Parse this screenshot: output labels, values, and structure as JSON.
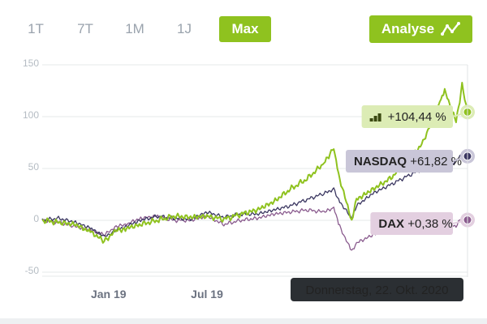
{
  "range_tabs": [
    {
      "label": "1T",
      "active": false
    },
    {
      "label": "7T",
      "active": false
    },
    {
      "label": "1M",
      "active": false
    },
    {
      "label": "1J",
      "active": false
    },
    {
      "label": "Max",
      "active": true
    }
  ],
  "analyse_button": {
    "label": "Analyse",
    "icon": "trend-line-icon"
  },
  "colors": {
    "accent": "#8fc21f",
    "nasdaq": "#3a3660",
    "dax": "#8a5b8e",
    "nasdaq_pill": "#c9c6d8",
    "dax_pill": "#e3cfe0",
    "main_pill": "#dcecb5"
  },
  "chart_data": {
    "type": "line",
    "ylim": [
      -50,
      150
    ],
    "y_ticks": [
      {
        "label": "150",
        "value": 150
      },
      {
        "label": "100",
        "value": 100
      },
      {
        "label": "50",
        "value": 50
      },
      {
        "label": "0",
        "value": 0
      },
      {
        "label": "-50",
        "value": -50
      }
    ],
    "x_ticks": [
      {
        "label": "Jan 19",
        "x": "2019-01-01"
      },
      {
        "label": "Jul 19",
        "x": "2019-07-01"
      }
    ],
    "grid": true,
    "tooltip": "Donnerstag, 22. Okt. 2020",
    "x": [
      "2018-09-01",
      "2018-10-01",
      "2018-11-01",
      "2018-12-01",
      "2018-12-24",
      "2019-01-15",
      "2019-02-01",
      "2019-03-01",
      "2019-04-01",
      "2019-05-01",
      "2019-06-01",
      "2019-07-01",
      "2019-08-01",
      "2019-09-01",
      "2019-10-01",
      "2019-11-01",
      "2019-12-01",
      "2020-01-01",
      "2020-02-01",
      "2020-02-19",
      "2020-03-01",
      "2020-03-23",
      "2020-04-01",
      "2020-05-01",
      "2020-06-01",
      "2020-07-01",
      "2020-08-01",
      "2020-09-01",
      "2020-09-10",
      "2020-10-01",
      "2020-10-12",
      "2020-10-22"
    ],
    "series": [
      {
        "values": [
          0,
          -2,
          -4,
          -12,
          -20,
          -10,
          -8,
          -4,
          0,
          4,
          3,
          4,
          1,
          6,
          10,
          18,
          30,
          40,
          55,
          70,
          40,
          0,
          20,
          30,
          40,
          55,
          75,
          115,
          125,
          95,
          130,
          104.44
        ],
        "label": "+104,44 %",
        "icon": "bar-chart-icon"
      },
      {
        "name": "NASDAQ",
        "values": [
          0,
          2,
          -2,
          -8,
          -16,
          -10,
          -6,
          0,
          4,
          2,
          1,
          8,
          3,
          6,
          6,
          10,
          14,
          20,
          26,
          30,
          18,
          2,
          14,
          26,
          34,
          42,
          50,
          55,
          50,
          57,
          65,
          61.82
        ],
        "label": "+61,82 %"
      },
      {
        "name": "DAX",
        "values": [
          0,
          -2,
          -6,
          -10,
          -14,
          -6,
          -4,
          2,
          4,
          0,
          0,
          4,
          -4,
          0,
          2,
          6,
          8,
          10,
          8,
          12,
          -6,
          -30,
          -22,
          -14,
          -8,
          -4,
          -2,
          0,
          -2,
          -6,
          4,
          0.38
        ],
        "label": "+0,38 %"
      }
    ]
  }
}
